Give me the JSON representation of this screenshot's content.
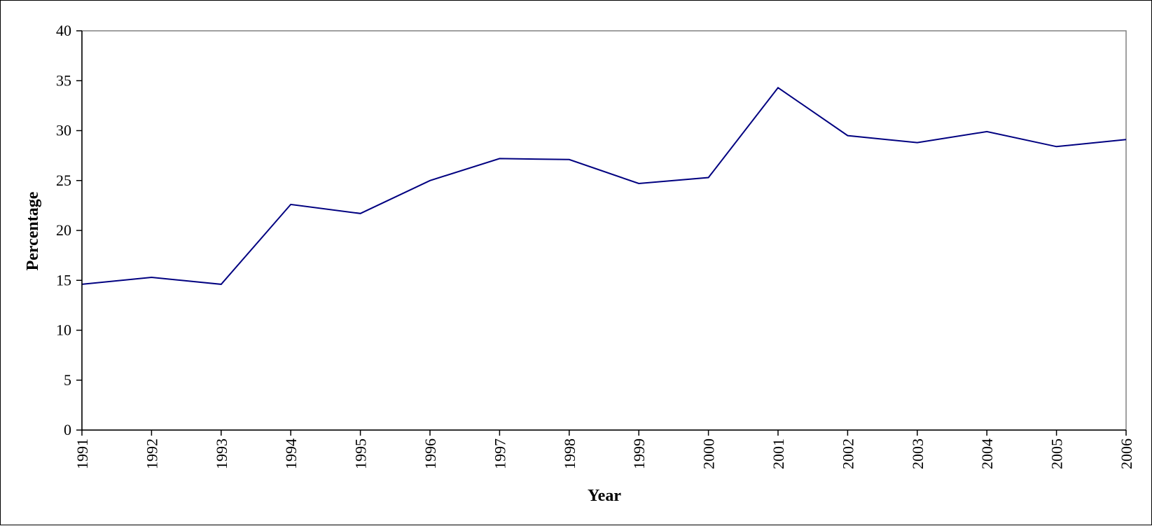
{
  "chart_data": {
    "type": "line",
    "title": "",
    "xlabel": "Year",
    "ylabel": "Percentage",
    "x": [
      "1991",
      "1992",
      "1993",
      "1994",
      "1995",
      "1996",
      "1997",
      "1998",
      "1999",
      "2000",
      "2001",
      "2002",
      "2003",
      "2004",
      "2005",
      "2006"
    ],
    "y_ticks": [
      "0",
      "5",
      "10",
      "15",
      "20",
      "25",
      "30",
      "35",
      "40"
    ],
    "ylim": [
      0,
      40
    ],
    "grid": false,
    "legend": "none",
    "series": [
      {
        "color": "#000080",
        "values": [
          14.6,
          15.3,
          14.6,
          22.6,
          21.7,
          25.0,
          27.2,
          27.1,
          24.7,
          25.3,
          34.3,
          29.5,
          28.8,
          29.9,
          28.4,
          29.1
        ]
      }
    ],
    "axis_color": "#000000",
    "plot_border_color": "#808080"
  }
}
